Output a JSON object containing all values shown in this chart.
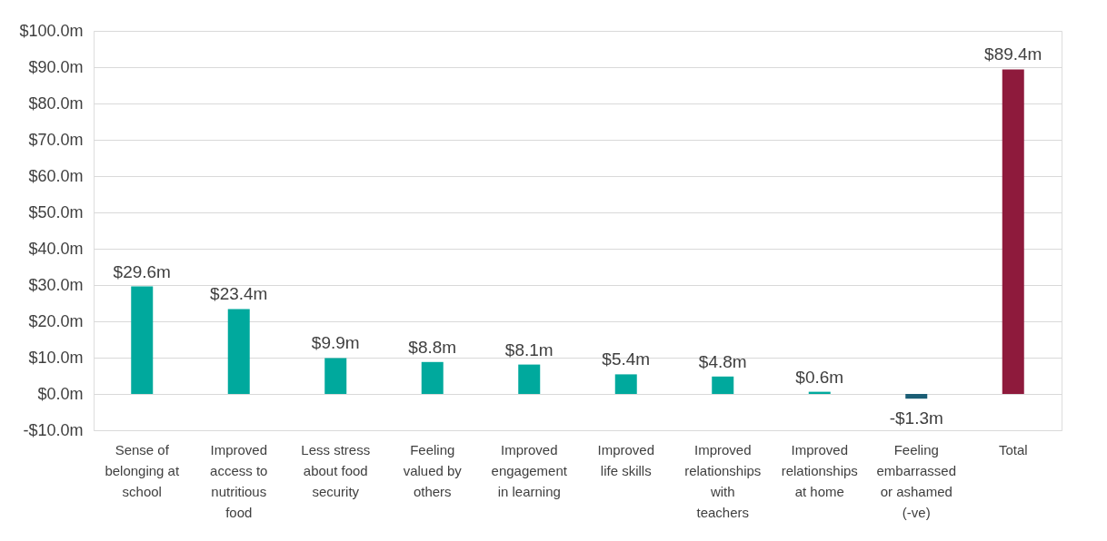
{
  "chart_data": {
    "type": "bar",
    "categories": [
      "Sense of belonging at school",
      "Improved access to nutritious food",
      "Less stress about food security",
      "Feeling valued by others",
      "Improved engagement in learning",
      "Improved life skills",
      "Improved relationships with teachers",
      "Improved relationships at home",
      "Feeling embarrassed or ashamed (-ve)",
      "Total"
    ],
    "values": [
      29.6,
      23.4,
      9.9,
      8.8,
      8.1,
      5.4,
      4.8,
      0.6,
      -1.3,
      89.4
    ],
    "colors": [
      "#00a99d",
      "#00a99d",
      "#00a99d",
      "#00a99d",
      "#00a99d",
      "#00a99d",
      "#00a99d",
      "#00a99d",
      "#1b5e75",
      "#8e1a3c"
    ],
    "value_labels": [
      "$29.6m",
      "$23.4m",
      "$9.9m",
      "$8.8m",
      "$8.1m",
      "$5.4m",
      "$4.8m",
      "$0.6m",
      "-$1.3m",
      "$89.4m"
    ],
    "ylim": [
      -10,
      100
    ],
    "yticks": [
      {
        "value": -10,
        "label": "-$10.0m"
      },
      {
        "value": 0,
        "label": "$0.0m"
      },
      {
        "value": 10,
        "label": "$10.0m"
      },
      {
        "value": 20,
        "label": "$20.0m"
      },
      {
        "value": 30,
        "label": "$30.0m"
      },
      {
        "value": 40,
        "label": "$40.0m"
      },
      {
        "value": 50,
        "label": "$50.0m"
      },
      {
        "value": 60,
        "label": "$60.0m"
      },
      {
        "value": 70,
        "label": "$70.0m"
      },
      {
        "value": 80,
        "label": "$80.0m"
      },
      {
        "value": 90,
        "label": "$90.0m"
      },
      {
        "value": 100,
        "label": "$100.0m"
      }
    ],
    "grid": "y"
  }
}
